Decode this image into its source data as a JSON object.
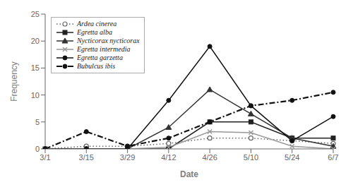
{
  "chart_data": {
    "type": "line",
    "xlabel": "Date",
    "ylabel": "Frequency",
    "categories": [
      "3/1",
      "3/15",
      "3/29",
      "4/12",
      "4/26",
      "5/10",
      "5/24",
      "6/7"
    ],
    "series": [
      {
        "name": "Ardea cinerea",
        "color": "#666666",
        "marker": "circle_open",
        "line_style": "dotted",
        "values": [
          0,
          0.5,
          0.5,
          1.0,
          2.0,
          2.0,
          1.5,
          1.0
        ]
      },
      {
        "name": "Egretta alba",
        "color": "#222222",
        "marker": "square",
        "line_style": "solid",
        "values": [
          0,
          0,
          0,
          0,
          5.0,
          5.0,
          2.0,
          2.0
        ]
      },
      {
        "name": "Nycticorax nycticorax",
        "color": "#333333",
        "marker": "triangle",
        "line_style": "solid",
        "values": [
          0,
          0,
          0,
          4.0,
          11.0,
          6.5,
          2.0,
          0.5
        ]
      },
      {
        "name": "Egretta intermedia",
        "color": "#999999",
        "marker": "x",
        "line_style": "solid",
        "values": [
          0,
          0,
          0,
          0.3,
          3.2,
          3.0,
          0.5,
          0
        ]
      },
      {
        "name": "Egretta garzetta",
        "color": "#111111",
        "marker": "circle",
        "line_style": "solid",
        "values": [
          0,
          0,
          0,
          9.0,
          19.0,
          8.0,
          1.5,
          6.0
        ]
      },
      {
        "name": "Bubulcus ibis",
        "color": "#111111",
        "marker": "circle",
        "line_style": "dashdot",
        "values": [
          0,
          3.2,
          0.5,
          2.0,
          5.0,
          8.0,
          9.0,
          10.5
        ]
      }
    ],
    "ylim": [
      0,
      25
    ],
    "yticks": [
      0,
      5,
      10,
      15,
      20,
      25
    ],
    "grid": false,
    "legend": "upper left"
  }
}
